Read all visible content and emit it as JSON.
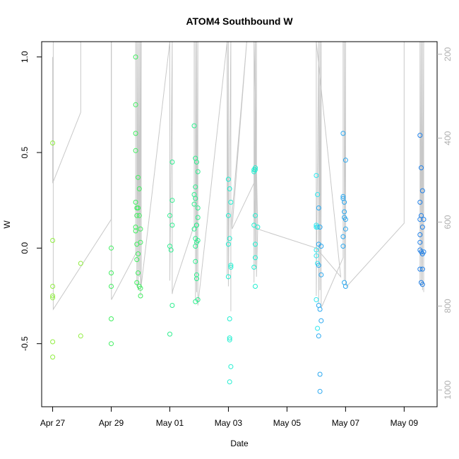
{
  "chart_data": {
    "type": "scatter",
    "title": "ATOM4 Southbound W",
    "xlabel": "Date",
    "ylabel": "W",
    "x_ticks": [
      "Apr 27",
      "Apr 29",
      "May 01",
      "May 03",
      "May 05",
      "May 07",
      "May 09"
    ],
    "x_tick_values": [
      "2015-04-27",
      "2015-04-29",
      "2015-05-01",
      "2015-05-03",
      "2015-05-05",
      "2015-05-07",
      "2015-05-09"
    ],
    "xlim": [
      "2015-04-26T15:00",
      "2015-05-10T03:00"
    ],
    "ylim": [
      -0.83,
      1.08
    ],
    "y_ticks": [
      -0.5,
      0.0,
      0.5,
      1.0
    ],
    "y_tick_labels": [
      "-0.5",
      "0.0",
      "0.5",
      "1.0"
    ],
    "y2_ticks": [
      200,
      400,
      600,
      800,
      1000
    ],
    "y2_tick_labels": [
      "200",
      "400",
      "600",
      "800",
      "1000"
    ],
    "y2lim": [
      1040,
      170
    ],
    "y2_inverted": true,
    "y2_tick_color": "#b0b0b0",
    "marker": "open-circle",
    "point_color_scale": [
      "#90ee40",
      "#40ee60",
      "#30ee90",
      "#20eed0",
      "#30e8f0",
      "#2aa8f0",
      "#2080e8"
    ],
    "track_color": "#c8c8c8",
    "track": [
      [
        "2015-04-27T00:00",
        1.0
      ],
      [
        "2015-04-27T00:00",
        0.34
      ],
      [
        "2015-04-27T23:00",
        0.71
      ],
      [
        "2015-04-27T23:00",
        1.08
      ],
      [
        "2015-04-27T00:30",
        1.08
      ],
      [
        "2015-04-27T00:30",
        -0.32
      ],
      [
        "2015-04-29T00:00",
        0.15
      ],
      [
        "2015-04-29T00:00",
        1.08
      ],
      [
        "2015-04-29T00:10",
        1.08
      ],
      [
        "2015-04-29T00:10",
        -0.27
      ],
      [
        "2015-04-29T20:00",
        -0.03
      ],
      [
        "2015-04-29T20:00",
        1.08
      ],
      [
        "2015-04-29T21:00",
        1.08
      ],
      [
        "2015-04-29T21:00",
        -0.2
      ],
      [
        "2015-04-29T22:00",
        1.08
      ],
      [
        "2015-04-29T22:00",
        -0.22
      ],
      [
        "2015-04-29T23:00",
        1.08
      ],
      [
        "2015-04-29T23:00",
        -0.15
      ],
      [
        "2015-04-30T00:00",
        1.08
      ],
      [
        "2015-04-30T00:00",
        -0.25
      ],
      [
        "2015-04-30T00:30",
        1.08
      ],
      [
        "2015-04-30T00:30",
        -0.2
      ],
      [
        "2015-05-01T00:00",
        1.08
      ],
      [
        "2015-05-01T00:00",
        -0.17
      ],
      [
        "2015-05-01T02:00",
        1.08
      ],
      [
        "2015-05-01T02:00",
        -0.24
      ],
      [
        "2015-05-01T02:30",
        -0.22
      ],
      [
        "2015-05-01T20:00",
        0.12
      ],
      [
        "2015-05-01T20:00",
        1.08
      ],
      [
        "2015-05-01T21:00",
        1.08
      ],
      [
        "2015-05-01T21:00",
        -0.27
      ],
      [
        "2015-05-01T22:00",
        1.08
      ],
      [
        "2015-05-01T22:00",
        -0.23
      ],
      [
        "2015-05-01T23:00",
        1.08
      ],
      [
        "2015-05-01T23:00",
        -0.3
      ],
      [
        "2015-05-02T23:00",
        1.08
      ],
      [
        "2015-05-02T23:00",
        -0.14
      ],
      [
        "2015-05-03T00:00",
        1.08
      ],
      [
        "2015-05-03T00:00",
        -0.2
      ],
      [
        "2015-05-03T02:00",
        1.08
      ],
      [
        "2015-05-03T02:00",
        -0.33
      ],
      [
        "2015-05-03T02:00",
        0.1
      ],
      [
        "2015-05-03T15:00",
        1.08
      ],
      [
        "2015-05-03T03:00",
        0.1
      ],
      [
        "2015-05-03T21:00",
        0.34
      ],
      [
        "2015-05-03T22:00",
        0.12
      ],
      [
        "2015-05-04T00:00",
        0.1
      ],
      [
        "2015-05-03T21:00",
        1.08
      ],
      [
        "2015-05-03T21:00",
        -0.18
      ],
      [
        "2015-05-03T22:00",
        1.08
      ],
      [
        "2015-05-03T22:00",
        -0.1
      ],
      [
        "2015-05-03T23:00",
        1.08
      ],
      [
        "2015-05-03T23:00",
        -0.15
      ],
      [
        "2015-05-04T00:00",
        0.1
      ],
      [
        "2015-05-06T00:00",
        -0.0
      ],
      [
        "2015-05-06T20:00",
        -0.15
      ],
      [
        "2015-05-06T00:00",
        1.08
      ],
      [
        "2015-05-06T00:00",
        -0.25
      ],
      [
        "2015-05-06T02:00",
        1.08
      ],
      [
        "2015-05-06T02:00",
        -0.29
      ],
      [
        "2015-05-06T03:00",
        1.08
      ],
      [
        "2015-05-06T03:00",
        -0.22
      ],
      [
        "2015-05-06T04:00",
        1.08
      ],
      [
        "2015-05-06T04:00",
        -0.31
      ],
      [
        "2015-05-06T05:00",
        -0.3
      ],
      [
        "2015-05-06T22:00",
        -0.05
      ],
      [
        "2015-05-06T22:00",
        1.08
      ],
      [
        "2015-05-06T23:00",
        1.08
      ],
      [
        "2015-05-06T23:00",
        -0.17
      ],
      [
        "2015-05-07T00:00",
        1.08
      ],
      [
        "2015-05-07T00:00",
        -0.19
      ],
      [
        "2015-05-07T01:00",
        -0.2
      ],
      [
        "2015-05-09T00:00",
        0.13
      ],
      [
        "2015-05-09T00:00",
        1.08
      ],
      [
        "2015-05-09T13:00",
        1.08
      ],
      [
        "2015-05-09T13:00",
        -0.18
      ],
      [
        "2015-05-09T14:00",
        1.08
      ],
      [
        "2015-05-09T14:00",
        -0.2
      ],
      [
        "2015-05-09T15:00",
        1.08
      ],
      [
        "2015-05-09T15:00",
        -0.22
      ],
      [
        "2015-05-09T16:00",
        1.08
      ],
      [
        "2015-05-09T16:00",
        -0.23
      ]
    ],
    "points": [
      [
        "2015-04-27T00:00",
        0.55
      ],
      [
        "2015-04-27T00:00",
        0.04
      ],
      [
        "2015-04-27T00:00",
        -0.2
      ],
      [
        "2015-04-27T00:00",
        -0.25
      ],
      [
        "2015-04-27T00:00",
        -0.26
      ],
      [
        "2015-04-27T00:00",
        -0.49
      ],
      [
        "2015-04-27T00:00",
        -0.57
      ],
      [
        "2015-04-27T23:00",
        -0.08
      ],
      [
        "2015-04-27T23:00",
        -0.46
      ],
      [
        "2015-04-29T00:00",
        0.0
      ],
      [
        "2015-04-29T00:00",
        -0.13
      ],
      [
        "2015-04-29T00:00",
        -0.2
      ],
      [
        "2015-04-29T00:00",
        -0.37
      ],
      [
        "2015-04-29T00:00",
        -0.5
      ],
      [
        "2015-04-29T20:00",
        1.0
      ],
      [
        "2015-04-29T20:00",
        0.75
      ],
      [
        "2015-04-29T20:00",
        0.6
      ],
      [
        "2015-04-29T20:00",
        0.51
      ],
      [
        "2015-04-29T20:00",
        0.24
      ],
      [
        "2015-04-29T20:00",
        0.11
      ],
      [
        "2015-04-29T20:00",
        0.09
      ],
      [
        "2015-04-29T21:00",
        0.21
      ],
      [
        "2015-04-29T21:00",
        0.17
      ],
      [
        "2015-04-29T21:00",
        0.02
      ],
      [
        "2015-04-29T21:00",
        -0.18
      ],
      [
        "2015-04-29T21:00",
        -0.06
      ],
      [
        "2015-04-29T22:00",
        0.37
      ],
      [
        "2015-04-29T22:00",
        0.21
      ],
      [
        "2015-04-29T22:00",
        -0.03
      ],
      [
        "2015-04-29T22:00",
        -0.13
      ],
      [
        "2015-04-29T23:00",
        0.31
      ],
      [
        "2015-04-29T23:00",
        0.17
      ],
      [
        "2015-04-29T23:00",
        -0.2
      ],
      [
        "2015-04-30T00:00",
        0.1
      ],
      [
        "2015-04-30T00:00",
        0.03
      ],
      [
        "2015-04-30T00:00",
        -0.21
      ],
      [
        "2015-04-30T00:00",
        -0.25
      ],
      [
        "2015-05-01T00:00",
        0.17
      ],
      [
        "2015-05-01T00:00",
        0.01
      ],
      [
        "2015-05-01T01:00",
        -0.01
      ],
      [
        "2015-05-01T02:00",
        0.45
      ],
      [
        "2015-05-01T02:00",
        0.25
      ],
      [
        "2015-05-01T02:00",
        0.12
      ],
      [
        "2015-05-01T02:00",
        -0.3
      ],
      [
        "2015-05-01T00:00",
        -0.45
      ],
      [
        "2015-05-01T20:00",
        0.64
      ],
      [
        "2015-05-01T20:00",
        0.28
      ],
      [
        "2015-05-01T20:00",
        0.23
      ],
      [
        "2015-05-01T20:00",
        0.1
      ],
      [
        "2015-05-01T21:00",
        0.47
      ],
      [
        "2015-05-01T21:00",
        0.32
      ],
      [
        "2015-05-01T21:00",
        0.26
      ],
      [
        "2015-05-01T21:00",
        0.05
      ],
      [
        "2015-05-01T21:00",
        0.01
      ],
      [
        "2015-05-01T21:00",
        -0.07
      ],
      [
        "2015-05-01T21:00",
        -0.28
      ],
      [
        "2015-05-01T22:00",
        0.45
      ],
      [
        "2015-05-01T22:00",
        0.12
      ],
      [
        "2015-05-01T22:00",
        0.12
      ],
      [
        "2015-05-01T22:00",
        -0.14
      ],
      [
        "2015-05-01T22:00",
        -0.16
      ],
      [
        "2015-05-01T23:00",
        0.4
      ],
      [
        "2015-05-01T23:00",
        0.21
      ],
      [
        "2015-05-01T23:00",
        0.16
      ],
      [
        "2015-05-01T23:00",
        0.04
      ],
      [
        "2015-05-01T23:00",
        -0.27
      ],
      [
        "2015-05-01T22:00",
        0.03
      ],
      [
        "2015-05-03T00:00",
        0.36
      ],
      [
        "2015-05-03T00:00",
        0.17
      ],
      [
        "2015-05-03T00:00",
        0.02
      ],
      [
        "2015-05-03T00:00",
        -0.15
      ],
      [
        "2015-05-03T01:00",
        0.31
      ],
      [
        "2015-05-03T01:00",
        0.05
      ],
      [
        "2015-05-03T01:00",
        -0.37
      ],
      [
        "2015-05-03T01:00",
        -0.47
      ],
      [
        "2015-05-03T01:00",
        -0.48
      ],
      [
        "2015-05-03T02:00",
        -0.09
      ],
      [
        "2015-05-03T02:00",
        -0.1
      ],
      [
        "2015-05-03T02:00",
        0.24
      ],
      [
        "2015-05-03T02:00",
        -0.62
      ],
      [
        "2015-05-03T01:00",
        -0.7
      ],
      [
        "2015-05-03T21:00",
        0.4
      ],
      [
        "2015-05-03T21:00",
        0.41
      ],
      [
        "2015-05-03T21:00",
        0.12
      ],
      [
        "2015-05-03T22:00",
        0.42
      ],
      [
        "2015-05-03T22:00",
        0.41
      ],
      [
        "2015-05-03T22:00",
        0.17
      ],
      [
        "2015-05-03T22:00",
        -0.05
      ],
      [
        "2015-05-03T21:00",
        -0.1
      ],
      [
        "2015-05-03T22:00",
        0.02
      ],
      [
        "2015-05-03T22:00",
        -0.2
      ],
      [
        "2015-05-04T00:00",
        0.11
      ],
      [
        "2015-05-06T00:00",
        0.38
      ],
      [
        "2015-05-06T00:00",
        0.12
      ],
      [
        "2015-05-06T00:00",
        0.11
      ],
      [
        "2015-05-06T00:00",
        -0.01
      ],
      [
        "2015-05-06T00:00",
        -0.04
      ],
      [
        "2015-05-06T00:00",
        -0.27
      ],
      [
        "2015-05-06T01:00",
        0.28
      ],
      [
        "2015-05-06T01:00",
        0.11
      ],
      [
        "2015-05-06T01:00",
        -0.08
      ],
      [
        "2015-05-06T01:00",
        -0.42
      ],
      [
        "2015-05-06T02:00",
        0.21
      ],
      [
        "2015-05-06T02:00",
        0.02
      ],
      [
        "2015-05-06T02:00",
        -0.09
      ],
      [
        "2015-05-06T02:00",
        -0.46
      ],
      [
        "2015-05-06T02:00",
        -0.3
      ],
      [
        "2015-05-06T03:00",
        0.11
      ],
      [
        "2015-05-06T03:00",
        -0.32
      ],
      [
        "2015-05-06T03:00",
        -0.66
      ],
      [
        "2015-05-06T03:00",
        -0.75
      ],
      [
        "2015-05-06T04:00",
        0.01
      ],
      [
        "2015-05-06T04:00",
        -0.14
      ],
      [
        "2015-05-06T04:00",
        -0.38
      ],
      [
        "2015-05-06T22:00",
        0.6
      ],
      [
        "2015-05-06T22:00",
        0.27
      ],
      [
        "2015-05-06T22:00",
        0.26
      ],
      [
        "2015-05-06T22:00",
        0.06
      ],
      [
        "2015-05-06T22:00",
        0.01
      ],
      [
        "2015-05-06T23:00",
        0.24
      ],
      [
        "2015-05-06T23:00",
        0.19
      ],
      [
        "2015-05-06T23:00",
        0.16
      ],
      [
        "2015-05-06T23:00",
        -0.18
      ],
      [
        "2015-05-07T00:00",
        0.46
      ],
      [
        "2015-05-07T00:00",
        0.15
      ],
      [
        "2015-05-07T00:00",
        0.1
      ],
      [
        "2015-05-07T00:00",
        -0.2
      ],
      [
        "2015-05-09T13:00",
        0.59
      ],
      [
        "2015-05-09T13:00",
        0.24
      ],
      [
        "2015-05-09T13:00",
        0.15
      ],
      [
        "2015-05-09T13:00",
        0.07
      ],
      [
        "2015-05-09T13:00",
        0.03
      ],
      [
        "2015-05-09T13:00",
        -0.01
      ],
      [
        "2015-05-09T13:00",
        -0.11
      ],
      [
        "2015-05-09T14:00",
        0.42
      ],
      [
        "2015-05-09T14:00",
        0.17
      ],
      [
        "2015-05-09T14:00",
        -0.02
      ],
      [
        "2015-05-09T14:00",
        -0.18
      ],
      [
        "2015-05-09T15:00",
        0.3
      ],
      [
        "2015-05-09T15:00",
        0.11
      ],
      [
        "2015-05-09T15:00",
        -0.03
      ],
      [
        "2015-05-09T15:00",
        -0.11
      ],
      [
        "2015-05-09T15:00",
        -0.19
      ],
      [
        "2015-05-09T16:00",
        0.15
      ],
      [
        "2015-05-09T16:00",
        -0.02
      ]
    ]
  }
}
